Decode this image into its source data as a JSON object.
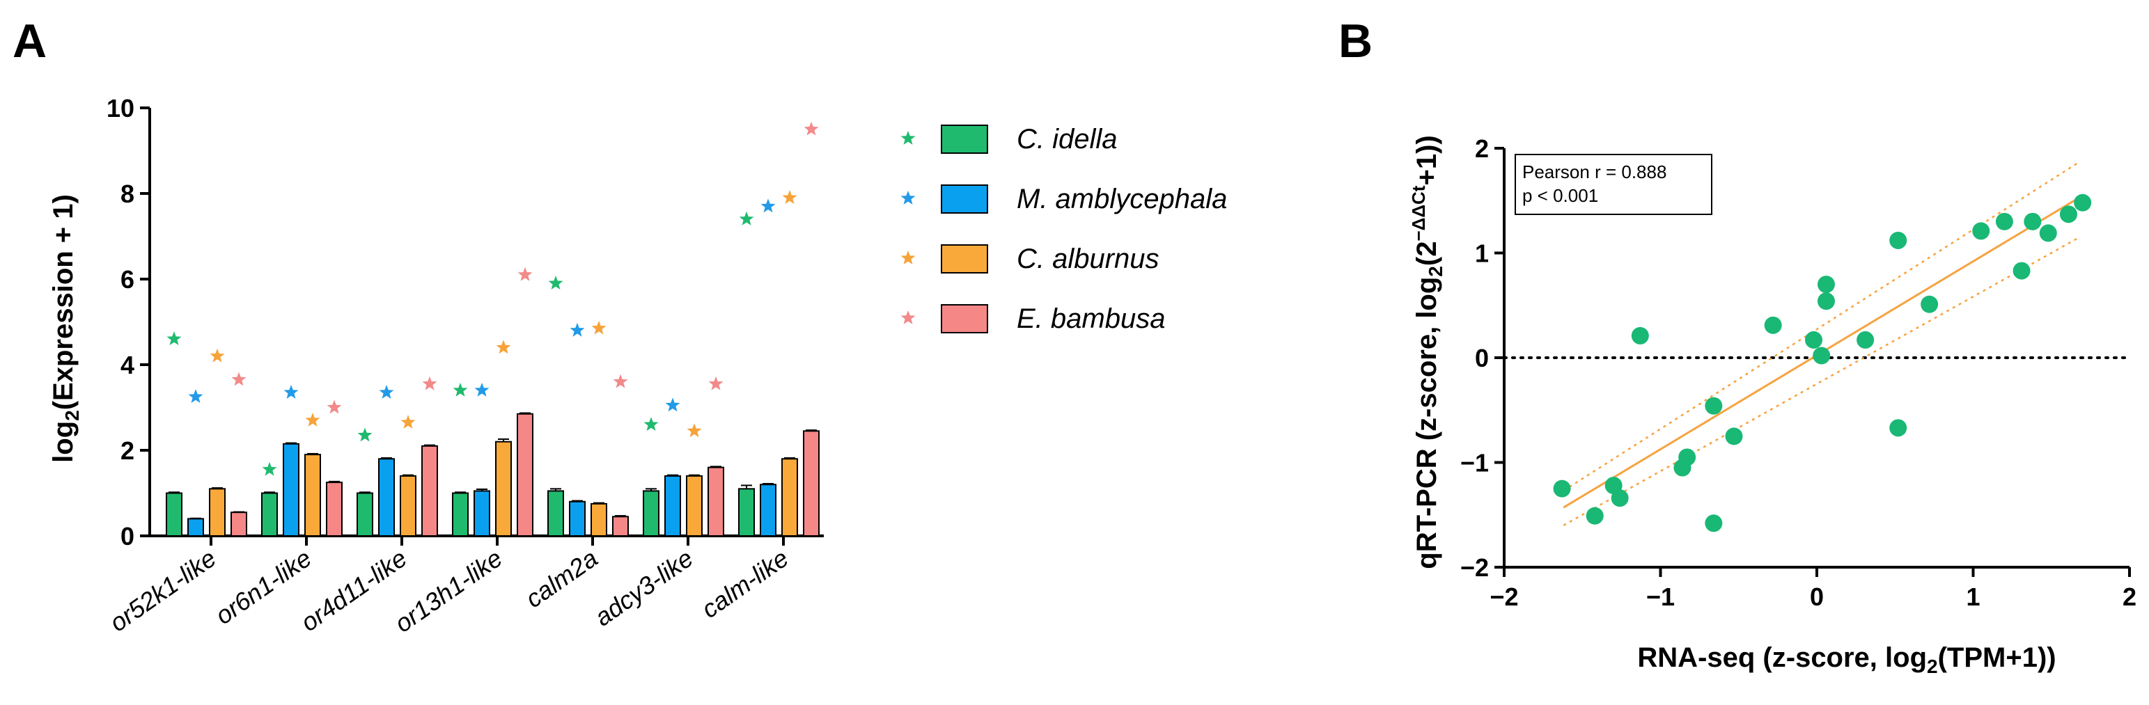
{
  "panels": {
    "a": {
      "letter": "A"
    },
    "b": {
      "letter": "B"
    }
  },
  "chart_data": [
    {
      "type": "bar",
      "panel": "A",
      "ylabel_main": "log",
      "ylabel_sub": "2",
      "ylabel_rest": "(Expression + 1)",
      "ylim": [
        0,
        10
      ],
      "yticks": [
        "0",
        "2",
        "4",
        "6",
        "8",
        "10"
      ],
      "categories": [
        "or52k1-like",
        "or6n1-like",
        "or4d11-like",
        "or13h1-like",
        "calm2a",
        "adcy3-like",
        "calm-like"
      ],
      "legend_position": "right",
      "series": [
        {
          "name": "C. idella",
          "color": "#1fba6e",
          "star_color": "#1fba6e",
          "values": [
            1.0,
            1.0,
            1.0,
            1.0,
            1.05,
            1.05,
            1.1
          ],
          "errors": [
            0.02,
            0.02,
            0.02,
            0.02,
            0.05,
            0.05,
            0.08
          ],
          "star_values": [
            4.6,
            1.55,
            2.35,
            3.4,
            5.9,
            2.6,
            7.4
          ]
        },
        {
          "name": "M. amblycephala",
          "color": "#0aa0f0",
          "star_color": "#229ae8",
          "values": [
            0.4,
            2.15,
            1.8,
            1.05,
            0.8,
            1.4,
            1.2
          ],
          "errors": [
            0.01,
            0.02,
            0.02,
            0.04,
            0.02,
            0.02,
            0.02
          ],
          "star_values": [
            3.25,
            3.35,
            3.35,
            3.4,
            4.8,
            3.05,
            7.7
          ]
        },
        {
          "name": "C. alburnus",
          "color": "#f9a93a",
          "star_color": "#f6a33a",
          "values": [
            1.1,
            1.9,
            1.4,
            2.2,
            0.75,
            1.4,
            1.8
          ],
          "errors": [
            0.02,
            0.02,
            0.02,
            0.06,
            0.02,
            0.02,
            0.02
          ],
          "star_values": [
            4.2,
            2.7,
            2.65,
            4.4,
            4.85,
            2.45,
            7.9
          ]
        },
        {
          "name": "E. bambusa",
          "color": "#f68787",
          "star_color": "#f28a8a",
          "values": [
            0.55,
            1.25,
            2.1,
            2.85,
            0.45,
            1.6,
            2.45
          ],
          "errors": [
            0.01,
            0.02,
            0.02,
            0.02,
            0.02,
            0.02,
            0.02
          ],
          "star_values": [
            3.65,
            3.0,
            3.55,
            6.1,
            3.6,
            3.55,
            9.5
          ]
        }
      ]
    },
    {
      "type": "scatter",
      "panel": "B",
      "xlabel_main": "RNA-seq (z-score, log",
      "xlabel_sub": "2",
      "xlabel_rest": "(TPM+1))",
      "ylabel_main": "qRT-PCR (z-score, log",
      "ylabel_sub": "2",
      "ylabel_mid": "(2",
      "ylabel_sup": "−ΔΔCt",
      "ylabel_rest": "+1))",
      "xlim": [
        -2,
        2
      ],
      "ylim": [
        -2,
        2
      ],
      "xticks": [
        "−2",
        "−1",
        "0",
        "1",
        "2"
      ],
      "yticks": [
        "−2",
        "−1",
        "0",
        "1",
        "2"
      ],
      "point_color": "#19b874",
      "fit_color": "#f6a340",
      "zero_line": "dotted horizontal at y = 0",
      "stats": {
        "line1": "Pearson r = 0.888",
        "line2": "p < 0.001"
      },
      "fit": {
        "x_start": -1.62,
        "x_end": 1.68,
        "y_start": -1.43,
        "y_end": 1.53
      },
      "band_upper": {
        "x_start": -1.62,
        "x_end": 1.68,
        "y_start": -1.27,
        "y_end": 1.87
      },
      "band_lower": {
        "x_start": -1.62,
        "x_end": 1.68,
        "y_start": -1.6,
        "y_end": 1.15
      },
      "points": [
        [
          -1.63,
          -1.25
        ],
        [
          -1.42,
          -1.51
        ],
        [
          -1.3,
          -1.22
        ],
        [
          -1.26,
          -1.34
        ],
        [
          -1.13,
          0.21
        ],
        [
          -0.86,
          -1.05
        ],
        [
          -0.83,
          -0.95
        ],
        [
          -0.66,
          -0.46
        ],
        [
          -0.66,
          -1.58
        ],
        [
          -0.53,
          -0.75
        ],
        [
          -0.28,
          0.31
        ],
        [
          -0.02,
          0.17
        ],
        [
          0.03,
          0.02
        ],
        [
          0.06,
          0.54
        ],
        [
          0.06,
          0.7
        ],
        [
          0.31,
          0.17
        ],
        [
          0.52,
          1.12
        ],
        [
          0.52,
          -0.67
        ],
        [
          0.72,
          0.51
        ],
        [
          1.05,
          1.21
        ],
        [
          1.2,
          1.3
        ],
        [
          1.31,
          0.83
        ],
        [
          1.38,
          1.3
        ],
        [
          1.48,
          1.19
        ],
        [
          1.61,
          1.37
        ],
        [
          1.7,
          1.48
        ]
      ]
    }
  ]
}
